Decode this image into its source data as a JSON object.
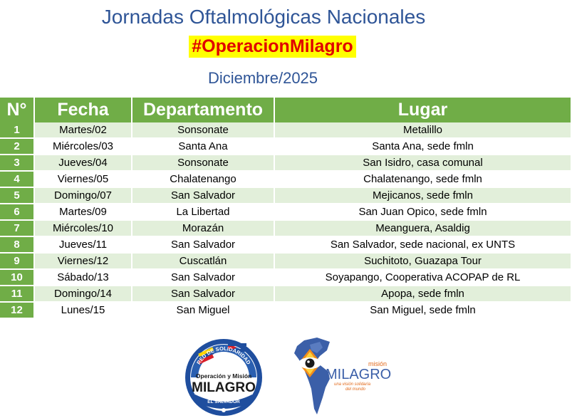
{
  "header": {
    "title": "Jornadas Oftalmológicas Nacionales",
    "hashtag": "#OperacionMilagro",
    "month": "Diciembre/2025"
  },
  "table": {
    "columns": [
      "N°",
      "Fecha",
      "Departamento",
      "Lugar"
    ],
    "rows": [
      {
        "num": "1",
        "fecha": "Martes/02",
        "departamento": "Sonsonate",
        "lugar": "Metalillo"
      },
      {
        "num": "2",
        "fecha": "Miércoles/03",
        "departamento": "Santa Ana",
        "lugar": "Santa Ana, sede fmln"
      },
      {
        "num": "3",
        "fecha": "Jueves/04",
        "departamento": "Sonsonate",
        "lugar": "San Isidro, casa comunal"
      },
      {
        "num": "4",
        "fecha": "Viernes/05",
        "departamento": "Chalatenango",
        "lugar": "Chalatenango, sede fmln"
      },
      {
        "num": "5",
        "fecha": "Domingo/07",
        "departamento": "San Salvador",
        "lugar": "Mejicanos, sede fmln"
      },
      {
        "num": "6",
        "fecha": "Martes/09",
        "departamento": "La Libertad",
        "lugar": "San Juan Opico, sede fmln"
      },
      {
        "num": "7",
        "fecha": "Miércoles/10",
        "departamento": "Morazán",
        "lugar": "Meanguera, Asaldig"
      },
      {
        "num": "8",
        "fecha": "Jueves/11",
        "departamento": "San Salvador",
        "lugar": "San Salvador, sede nacional, ex UNTS"
      },
      {
        "num": "9",
        "fecha": "Viernes/12",
        "departamento": "Cuscatlán",
        "lugar": "Suchitoto, Guazapa Tour"
      },
      {
        "num": "10",
        "fecha": "Sábado/13",
        "departamento": "San Salvador",
        "lugar": "Soyapango, Cooperativa ACOPAP de RL"
      },
      {
        "num": "11",
        "fecha": "Domingo/14",
        "departamento": "San Salvador",
        "lugar": "Apopa, sede fmln"
      },
      {
        "num": "12",
        "fecha": "Lunes/15",
        "departamento": "San Miguel",
        "lugar": "San Miguel, sede fmln"
      }
    ]
  },
  "logos": {
    "left": {
      "arc_text": "RED DE SOLIDARIDAD",
      "line1": "Operación y Misión",
      "line2": "MILAGRO",
      "bottom_text": "EL SALVADOR"
    },
    "right": {
      "line1": "misión",
      "line2": "MILAGRO",
      "tagline1": "una visión solidaria",
      "tagline2": "del mundo"
    }
  },
  "colors": {
    "header_green": "#70ad47",
    "row_light_green": "#e2efda",
    "title_blue": "#2f5597",
    "hashtag_bg": "#ffff00",
    "hashtag_text": "#e00000"
  }
}
